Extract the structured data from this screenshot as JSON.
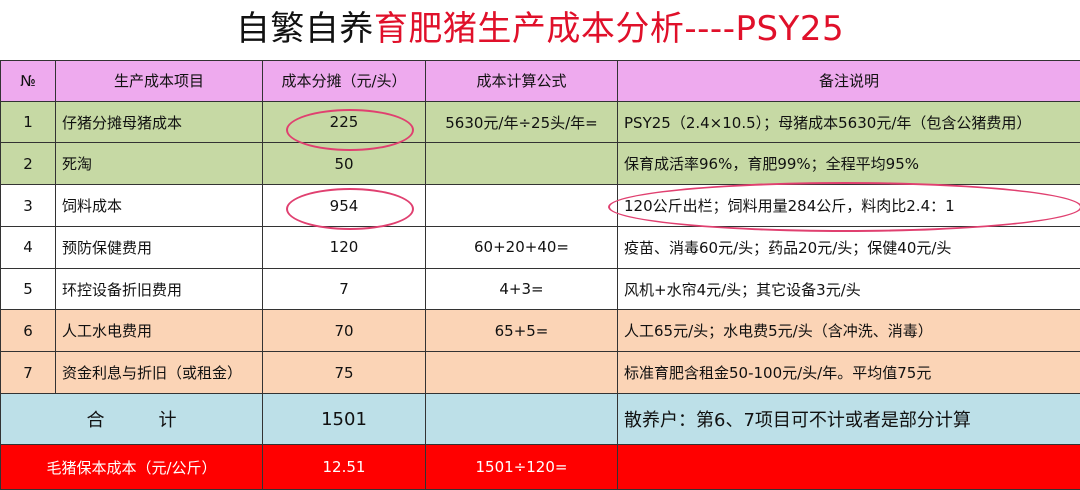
{
  "title": {
    "part_black": "自繁自养",
    "part_red": "育肥猪生产成本分析----PSY25"
  },
  "headers": [
    "№",
    "生产成本项目",
    "成本分摊（元/头）",
    "成本计算公式",
    "备注说明"
  ],
  "rows": [
    {
      "no": "1",
      "item": "仔猪分摊母猪成本",
      "cost": "225",
      "formula": "5630元/年÷25头/年=",
      "note": "PSY25（2.4×10.5）；母猪成本5630元/年（包含公猪费用）"
    },
    {
      "no": "2",
      "item": "死淘",
      "cost": "50",
      "formula": "",
      "note": "保育成活率96%，育肥99%；全程平均95%"
    },
    {
      "no": "3",
      "item": "饲料成本",
      "cost": "954",
      "formula": "",
      "note": "120公斤出栏；饲料用量284公斤，料肉比2.4：1"
    },
    {
      "no": "4",
      "item": "预防保健费用",
      "cost": "120",
      "formula": "60+20+40=",
      "note": "疫苗、消毒60元/头；药品20元/头；保健40元/头"
    },
    {
      "no": "5",
      "item": "环控设备折旧费用",
      "cost": "7",
      "formula": "4+3=",
      "note": "风机+水帘4元/头；其它设备3元/头"
    },
    {
      "no": "6",
      "item": "人工水电费用",
      "cost": "70",
      "formula": "65+5=",
      "note": "人工65元/头；水电费5元/头（含冲洗、消毒）"
    },
    {
      "no": "7",
      "item": "资金利息与折旧（或租金）",
      "cost": "75",
      "formula": "",
      "note": "标准育肥含租金50-100元/头/年。平均值75元"
    }
  ],
  "total": {
    "label": "合　　　计",
    "cost": "1501",
    "formula": "",
    "note": "散养户：第6、7项目可不计或者是部分计算"
  },
  "bottom": {
    "label": "毛猪保本成本（元/公斤）",
    "cost": "12.51",
    "formula": "1501÷120=",
    "note": ""
  }
}
